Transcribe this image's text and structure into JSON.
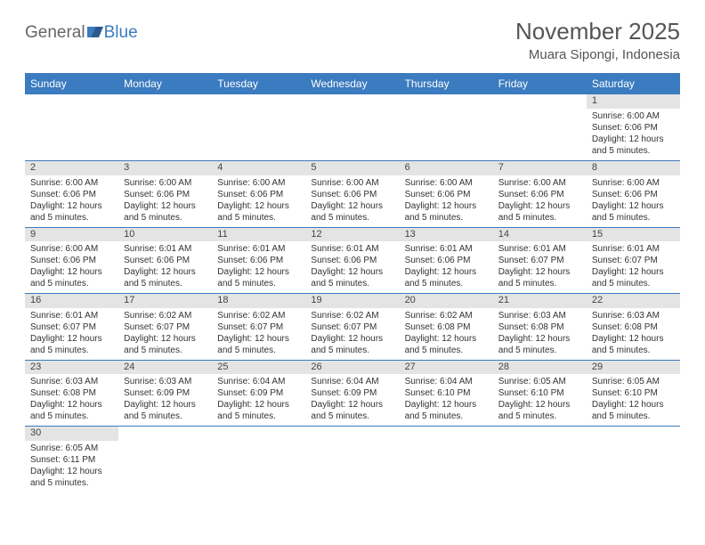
{
  "logo": {
    "general": "General",
    "blue": "Blue"
  },
  "title": "November 2025",
  "location": "Muara Sipongi, Indonesia",
  "colors": {
    "header_bg": "#3b7bbf",
    "header_text": "#ffffff",
    "daynum_bg": "#e4e4e4",
    "rule": "#3b7bbf",
    "text": "#333333",
    "title_text": "#555555"
  },
  "weekdays": [
    "Sunday",
    "Monday",
    "Tuesday",
    "Wednesday",
    "Thursday",
    "Friday",
    "Saturday"
  ],
  "weeks": [
    {
      "nums": [
        "",
        "",
        "",
        "",
        "",
        "",
        "1"
      ],
      "cells": [
        null,
        null,
        null,
        null,
        null,
        null,
        {
          "sr": "6:00 AM",
          "ss": "6:06 PM",
          "dl": "12 hours and 5 minutes."
        }
      ]
    },
    {
      "nums": [
        "2",
        "3",
        "4",
        "5",
        "6",
        "7",
        "8"
      ],
      "cells": [
        {
          "sr": "6:00 AM",
          "ss": "6:06 PM",
          "dl": "12 hours and 5 minutes."
        },
        {
          "sr": "6:00 AM",
          "ss": "6:06 PM",
          "dl": "12 hours and 5 minutes."
        },
        {
          "sr": "6:00 AM",
          "ss": "6:06 PM",
          "dl": "12 hours and 5 minutes."
        },
        {
          "sr": "6:00 AM",
          "ss": "6:06 PM",
          "dl": "12 hours and 5 minutes."
        },
        {
          "sr": "6:00 AM",
          "ss": "6:06 PM",
          "dl": "12 hours and 5 minutes."
        },
        {
          "sr": "6:00 AM",
          "ss": "6:06 PM",
          "dl": "12 hours and 5 minutes."
        },
        {
          "sr": "6:00 AM",
          "ss": "6:06 PM",
          "dl": "12 hours and 5 minutes."
        }
      ]
    },
    {
      "nums": [
        "9",
        "10",
        "11",
        "12",
        "13",
        "14",
        "15"
      ],
      "cells": [
        {
          "sr": "6:00 AM",
          "ss": "6:06 PM",
          "dl": "12 hours and 5 minutes."
        },
        {
          "sr": "6:01 AM",
          "ss": "6:06 PM",
          "dl": "12 hours and 5 minutes."
        },
        {
          "sr": "6:01 AM",
          "ss": "6:06 PM",
          "dl": "12 hours and 5 minutes."
        },
        {
          "sr": "6:01 AM",
          "ss": "6:06 PM",
          "dl": "12 hours and 5 minutes."
        },
        {
          "sr": "6:01 AM",
          "ss": "6:06 PM",
          "dl": "12 hours and 5 minutes."
        },
        {
          "sr": "6:01 AM",
          "ss": "6:07 PM",
          "dl": "12 hours and 5 minutes."
        },
        {
          "sr": "6:01 AM",
          "ss": "6:07 PM",
          "dl": "12 hours and 5 minutes."
        }
      ]
    },
    {
      "nums": [
        "16",
        "17",
        "18",
        "19",
        "20",
        "21",
        "22"
      ],
      "cells": [
        {
          "sr": "6:01 AM",
          "ss": "6:07 PM",
          "dl": "12 hours and 5 minutes."
        },
        {
          "sr": "6:02 AM",
          "ss": "6:07 PM",
          "dl": "12 hours and 5 minutes."
        },
        {
          "sr": "6:02 AM",
          "ss": "6:07 PM",
          "dl": "12 hours and 5 minutes."
        },
        {
          "sr": "6:02 AM",
          "ss": "6:07 PM",
          "dl": "12 hours and 5 minutes."
        },
        {
          "sr": "6:02 AM",
          "ss": "6:08 PM",
          "dl": "12 hours and 5 minutes."
        },
        {
          "sr": "6:03 AM",
          "ss": "6:08 PM",
          "dl": "12 hours and 5 minutes."
        },
        {
          "sr": "6:03 AM",
          "ss": "6:08 PM",
          "dl": "12 hours and 5 minutes."
        }
      ]
    },
    {
      "nums": [
        "23",
        "24",
        "25",
        "26",
        "27",
        "28",
        "29"
      ],
      "cells": [
        {
          "sr": "6:03 AM",
          "ss": "6:08 PM",
          "dl": "12 hours and 5 minutes."
        },
        {
          "sr": "6:03 AM",
          "ss": "6:09 PM",
          "dl": "12 hours and 5 minutes."
        },
        {
          "sr": "6:04 AM",
          "ss": "6:09 PM",
          "dl": "12 hours and 5 minutes."
        },
        {
          "sr": "6:04 AM",
          "ss": "6:09 PM",
          "dl": "12 hours and 5 minutes."
        },
        {
          "sr": "6:04 AM",
          "ss": "6:10 PM",
          "dl": "12 hours and 5 minutes."
        },
        {
          "sr": "6:05 AM",
          "ss": "6:10 PM",
          "dl": "12 hours and 5 minutes."
        },
        {
          "sr": "6:05 AM",
          "ss": "6:10 PM",
          "dl": "12 hours and 5 minutes."
        }
      ]
    },
    {
      "nums": [
        "30",
        "",
        "",
        "",
        "",
        "",
        ""
      ],
      "cells": [
        {
          "sr": "6:05 AM",
          "ss": "6:11 PM",
          "dl": "12 hours and 5 minutes."
        },
        null,
        null,
        null,
        null,
        null,
        null
      ]
    }
  ],
  "labels": {
    "sunrise": "Sunrise: ",
    "sunset": "Sunset: ",
    "daylight": "Daylight: "
  }
}
